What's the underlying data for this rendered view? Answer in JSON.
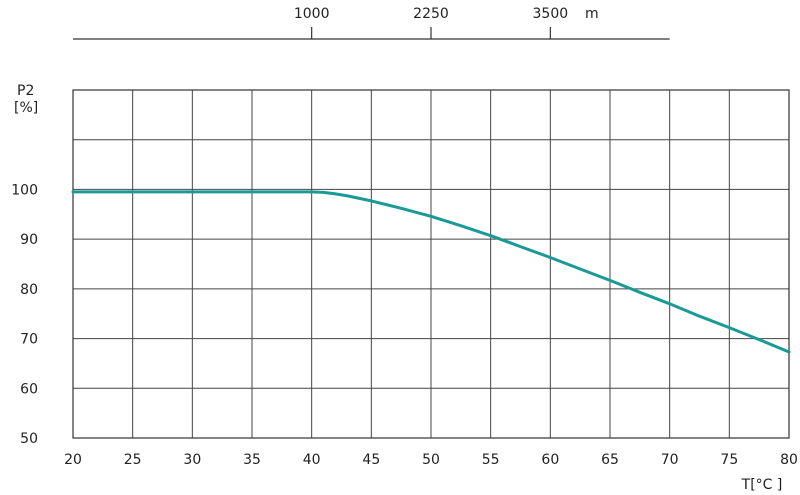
{
  "chart_data": {
    "type": "line",
    "xlabel": "T[°C ]",
    "ylabel_line1": "P2",
    "ylabel_line2": "[%]",
    "xlim": [
      20,
      80
    ],
    "ylim": [
      50,
      120
    ],
    "x_ticks": [
      20,
      25,
      30,
      35,
      40,
      45,
      50,
      55,
      60,
      65,
      70,
      75,
      80
    ],
    "y_ticks": [
      50,
      60,
      70,
      80,
      90,
      100
    ],
    "grid": true,
    "series": [
      {
        "color": "#1a9a96",
        "points": [
          [
            20,
            99.5
          ],
          [
            25,
            99.5
          ],
          [
            30,
            99.5
          ],
          [
            35,
            99.5
          ],
          [
            40,
            99.5
          ],
          [
            41,
            99.4
          ],
          [
            42,
            99.1
          ],
          [
            43,
            98.7
          ],
          [
            44,
            98.2
          ],
          [
            45,
            97.7
          ],
          [
            47.5,
            96.2
          ],
          [
            50,
            94.6
          ],
          [
            52.5,
            92.7
          ],
          [
            55,
            90.7
          ],
          [
            57.5,
            88.5
          ],
          [
            60,
            86.3
          ],
          [
            62.5,
            84.0
          ],
          [
            65,
            81.7
          ],
          [
            67.5,
            79.3
          ],
          [
            70,
            77.0
          ],
          [
            72.5,
            74.5
          ],
          [
            75,
            72.2
          ],
          [
            77.5,
            69.8
          ],
          [
            80,
            67.3
          ]
        ]
      }
    ],
    "altitude_axis": {
      "unit": "m",
      "ticks": [
        {
          "label": "1000",
          "temp": 40
        },
        {
          "label": "2250",
          "temp": 50
        },
        {
          "label": "3500",
          "temp": 60
        }
      ],
      "range_temp": [
        20,
        70
      ]
    }
  }
}
